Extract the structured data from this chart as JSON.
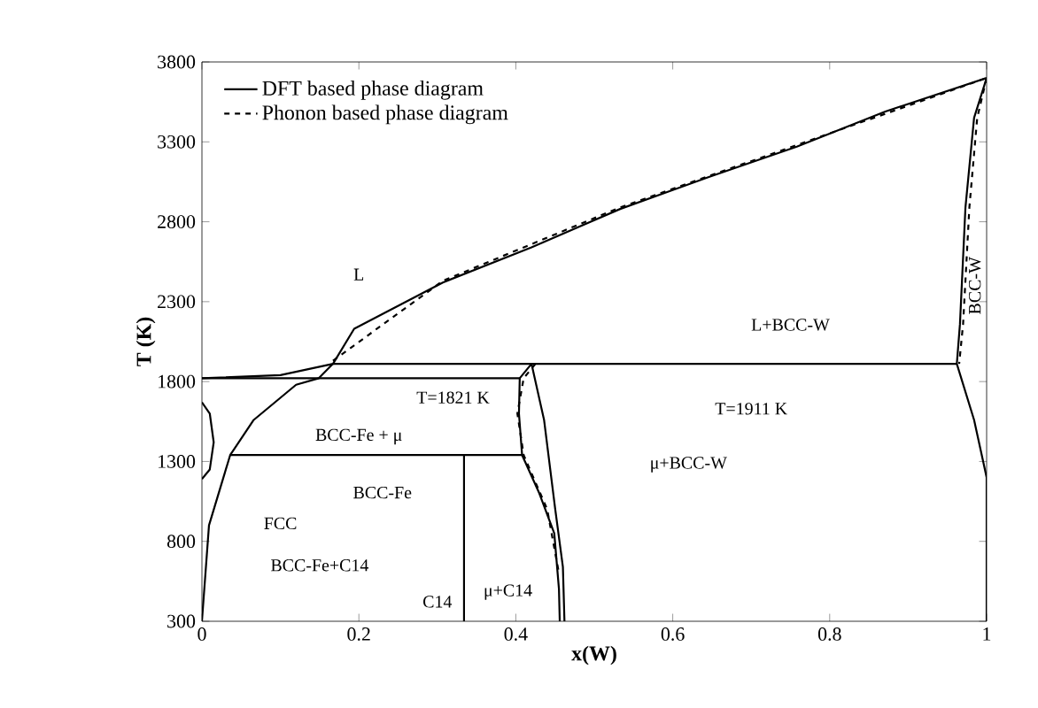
{
  "chart_data": {
    "type": "line",
    "xlabel": "x(W)",
    "ylabel": "T (K)",
    "xlim": [
      0,
      1
    ],
    "ylim": [
      300,
      3800
    ],
    "xticks": [
      0,
      0.2,
      0.4,
      0.6,
      0.8,
      1
    ],
    "yticks": [
      300,
      800,
      1300,
      1800,
      2300,
      2800,
      3300,
      3800
    ],
    "legend": "top left",
    "series": [
      {
        "name": "DFT based phase diagram",
        "color": "#000000",
        "line_style": "solid",
        "x": [
          0,
          0.1,
          0.167,
          0.194,
          0.307,
          0.42,
          0.533,
          0.646,
          0.758,
          0.871,
          1
        ],
        "values": [
          1821,
          1840,
          1911,
          2130,
          2420,
          2640,
          2880,
          3080,
          3270,
          3490,
          3700
        ]
      },
      {
        "name": "Phonon based phase diagram",
        "color": "#000000",
        "line_style": "dashed",
        "x": [
          0.167,
          0.307,
          0.533,
          0.758,
          1
        ],
        "values": [
          1930,
          2430,
          2890,
          3280,
          3700
        ]
      },
      {
        "color": "#000000",
        "line_style": "solid",
        "x": [
          0,
          0.009,
          0.036,
          0.066,
          0.12,
          0.149,
          0.167
        ],
        "values": [
          300,
          900,
          1340,
          1560,
          1780,
          1821,
          1911
        ]
      },
      {
        "color": "#000000",
        "line_style": "solid",
        "x": [
          0,
          0.405
        ],
        "values": [
          1821,
          1821
        ]
      },
      {
        "color": "#000000",
        "line_style": "solid",
        "x": [
          0.167,
          0.962
        ],
        "values": [
          1911,
          1911
        ]
      },
      {
        "color": "#000000",
        "line_style": "solid",
        "x": [
          0.036,
          0.408
        ],
        "values": [
          1340,
          1340
        ]
      },
      {
        "color": "#000000",
        "line_style": "solid",
        "x": [
          0.334,
          0.334
        ],
        "values": [
          300,
          1340
        ]
      },
      {
        "color": "#000000",
        "line_style": "solid",
        "x": [
          0.456,
          0.455,
          0.449,
          0.43,
          0.408,
          0.404,
          0.405,
          0.42,
          0.436,
          0.45,
          0.46,
          0.462
        ],
        "values": [
          300,
          500,
          850,
          1100,
          1340,
          1600,
          1821,
          1911,
          1560,
          1010,
          640,
          300
        ]
      },
      {
        "color": "#000000",
        "line_style": "solid",
        "x": [
          1,
          0.984,
          0.973,
          0.966,
          0.962,
          0.984,
          1,
          1
        ],
        "values": [
          3700,
          3450,
          2890,
          2160,
          1911,
          1560,
          1200,
          300
        ]
      },
      {
        "color": "#000000",
        "line_style": "solid",
        "x": [
          0,
          0.01,
          0.015,
          0.01,
          0
        ],
        "values": [
          1190,
          1250,
          1420,
          1600,
          1670
        ]
      },
      {
        "color": "#000000",
        "line_style": "dashed",
        "x": [
          0.425,
          0.41,
          0.402,
          0.41,
          0.44,
          0.455
        ],
        "values": [
          1911,
          1821,
          1600,
          1340,
          1000,
          600
        ]
      },
      {
        "color": "#000000",
        "line_style": "dashed",
        "x": [
          1,
          0.988,
          0.978,
          0.97,
          0.965
        ],
        "values": [
          3700,
          3450,
          2890,
          2160,
          1911
        ]
      }
    ],
    "annotations": [
      "L",
      "L+BCC-W",
      "BCC-W",
      "T=1821 K",
      "T=1911 K",
      "BCC-Fe + μ",
      "μ+BCC-W",
      "BCC-Fe",
      "FCC",
      "BCC-Fe+C14",
      "C14",
      "μ+C14"
    ]
  }
}
